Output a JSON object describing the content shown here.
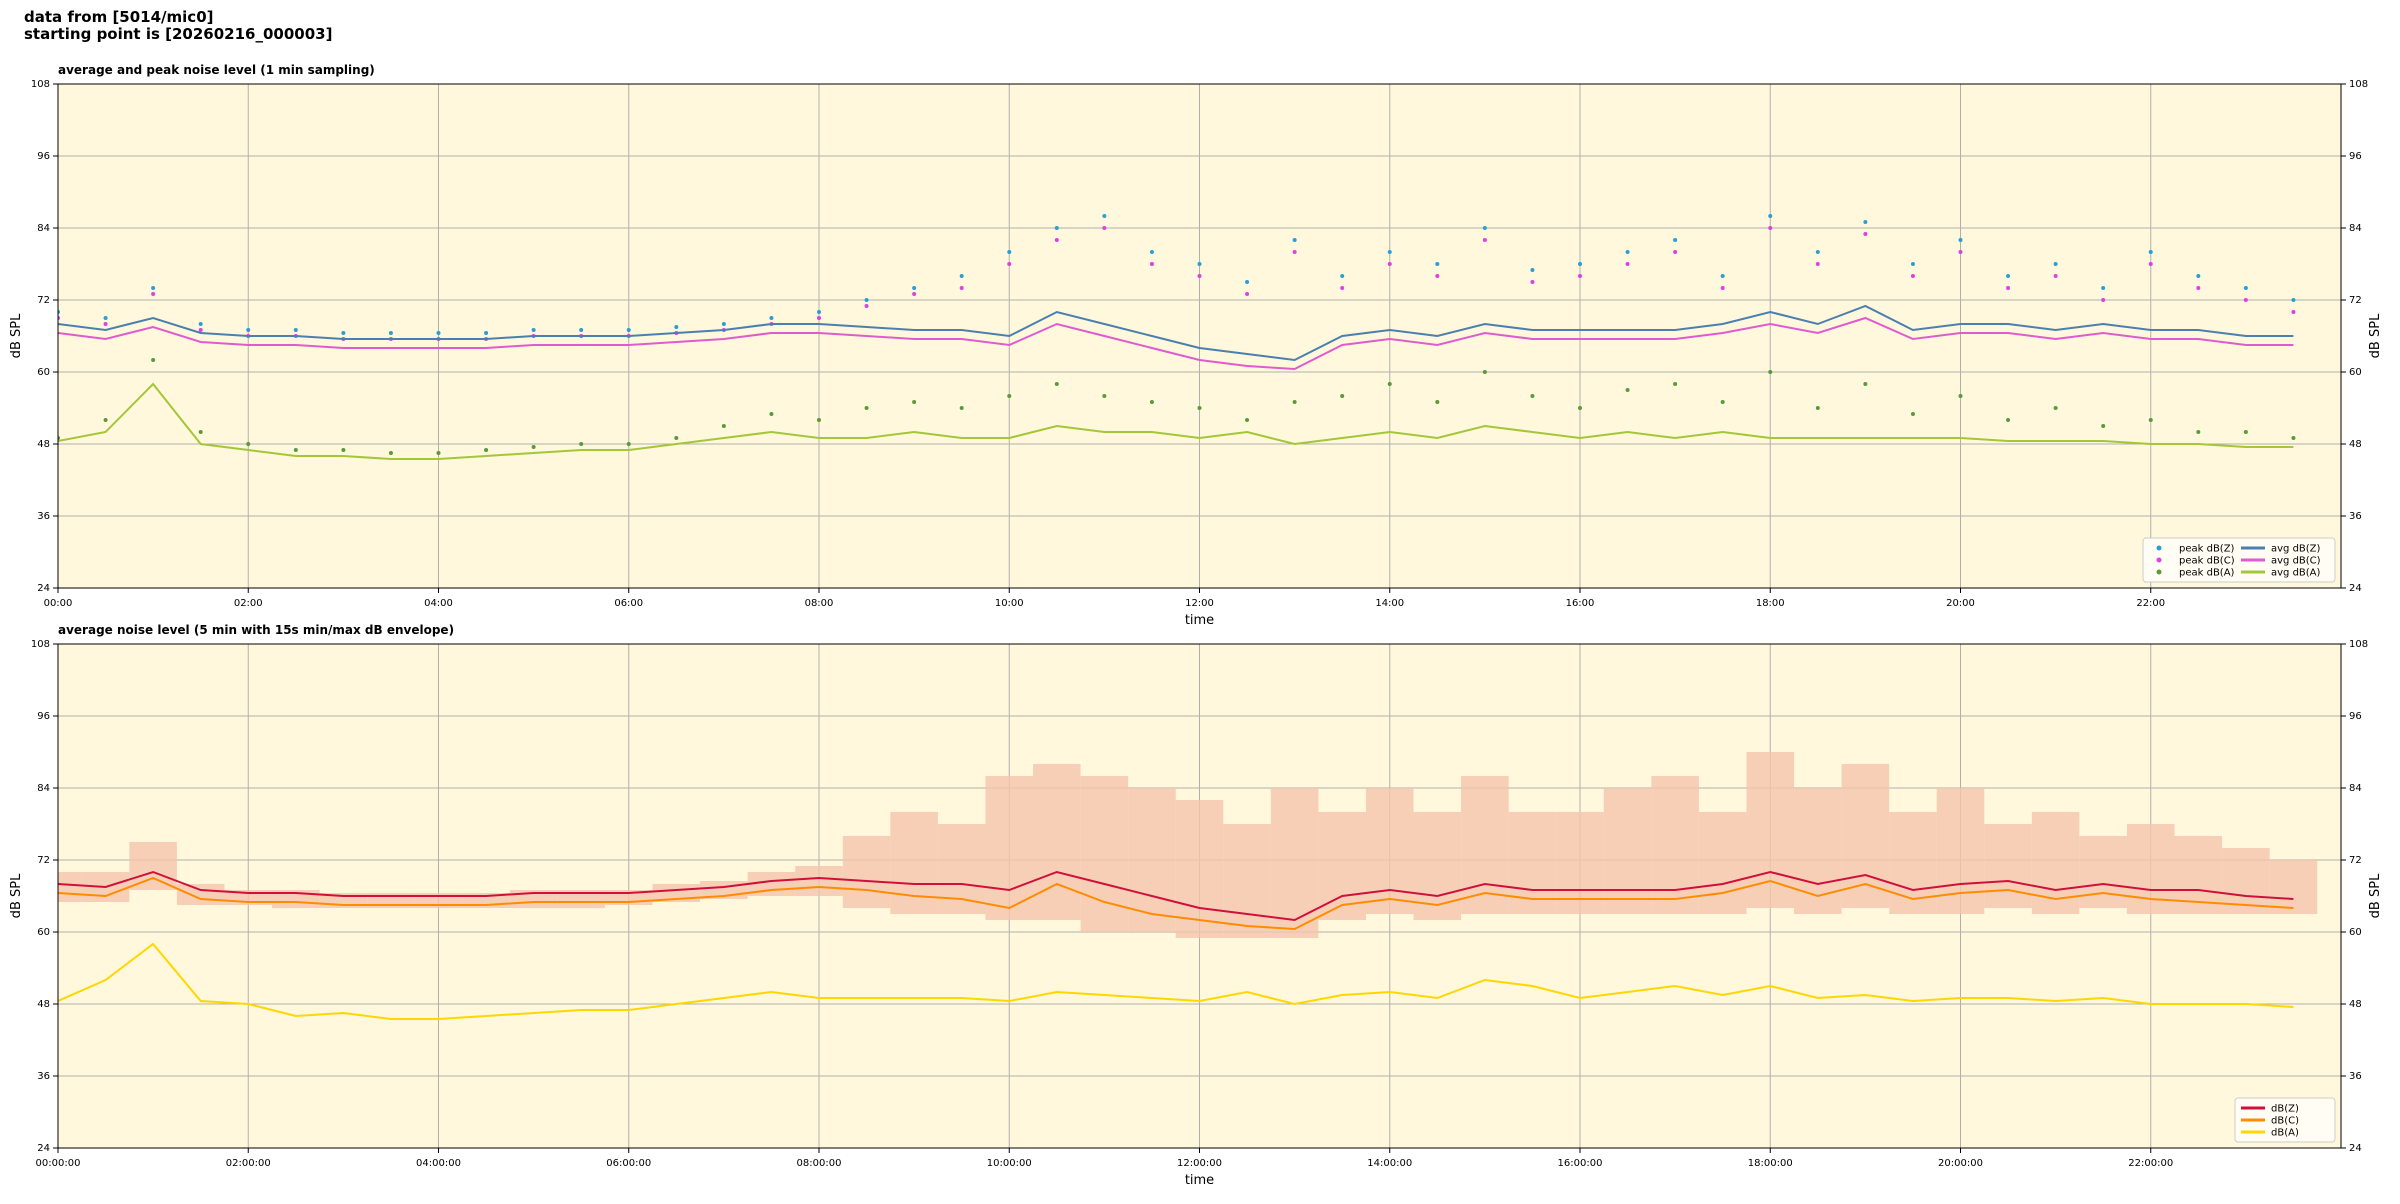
{
  "header": {
    "lines": [
      "data from [5014/mic0]",
      "starting point is [20260216_000003]"
    ]
  },
  "chart_data": [
    {
      "type": "line",
      "title": "average and peak noise level (1 min sampling)",
      "xlabel": "time",
      "ylabel": "dB SPL",
      "xlim": [
        0,
        24
      ],
      "ylim": [
        24,
        108
      ],
      "yticks": [
        24,
        36,
        48,
        60,
        72,
        84,
        96,
        108
      ],
      "xticks": [
        {
          "value": 0,
          "label": "00:00"
        },
        {
          "value": 2,
          "label": "02:00"
        },
        {
          "value": 4,
          "label": "04:00"
        },
        {
          "value": 6,
          "label": "06:00"
        },
        {
          "value": 8,
          "label": "08:00"
        },
        {
          "value": 10,
          "label": "10:00"
        },
        {
          "value": 12,
          "label": "12:00"
        },
        {
          "value": 14,
          "label": "14:00"
        },
        {
          "value": 16,
          "label": "16:00"
        },
        {
          "value": 18,
          "label": "18:00"
        },
        {
          "value": 20,
          "label": "20:00"
        },
        {
          "value": 22,
          "label": "22:00"
        }
      ],
      "grid": true,
      "legend": "lower right",
      "background": "#fff8dc",
      "x": [
        0,
        0.5,
        1,
        1.5,
        2,
        2.5,
        3,
        3.5,
        4,
        4.5,
        5,
        5.5,
        6,
        6.5,
        7,
        7.5,
        8,
        8.5,
        9,
        9.5,
        10,
        10.5,
        11,
        11.5,
        12,
        12.5,
        13,
        13.5,
        14,
        14.5,
        15,
        15.5,
        16,
        16.5,
        17,
        17.5,
        18,
        18.5,
        19,
        19.5,
        20,
        20.5,
        21,
        21.5,
        22,
        22.5,
        23,
        23.5
      ],
      "series": [
        {
          "name": "peak dB(Z)",
          "kind": "scatter",
          "color": "#2a9fd6",
          "values": [
            70,
            69,
            74,
            68,
            67,
            67,
            66.5,
            66.5,
            66.5,
            66.5,
            67,
            67,
            67,
            67.5,
            68,
            69,
            70,
            72,
            74,
            76,
            80,
            84,
            86,
            80,
            78,
            75,
            82,
            76,
            80,
            78,
            84,
            77,
            78,
            80,
            82,
            76,
            86,
            80,
            85,
            78,
            82,
            76,
            78,
            74,
            80,
            76,
            74,
            72
          ]
        },
        {
          "name": "peak dB(C)",
          "kind": "scatter",
          "color": "#e040e0",
          "values": [
            69,
            68,
            73,
            67,
            66,
            66,
            65.5,
            65.5,
            65.5,
            65.5,
            66,
            66,
            66,
            66.5,
            67,
            68,
            69,
            71,
            73,
            74,
            78,
            82,
            84,
            78,
            76,
            73,
            80,
            74,
            78,
            76,
            82,
            75,
            76,
            78,
            80,
            74,
            84,
            78,
            83,
            76,
            80,
            74,
            76,
            72,
            78,
            74,
            72,
            70
          ]
        },
        {
          "name": "peak dB(A)",
          "kind": "scatter",
          "color": "#5a9a3a",
          "values": [
            49,
            52,
            62,
            50,
            48,
            47,
            47,
            46.5,
            46.5,
            47,
            47.5,
            48,
            48,
            49,
            51,
            53,
            52,
            54,
            55,
            54,
            56,
            58,
            56,
            55,
            54,
            52,
            55,
            56,
            58,
            55,
            60,
            56,
            54,
            57,
            58,
            55,
            60,
            54,
            58,
            53,
            56,
            52,
            54,
            51,
            52,
            50,
            50,
            49
          ]
        },
        {
          "name": "avg dB(Z)",
          "kind": "line",
          "color": "#4a7fb0",
          "values": [
            68,
            67,
            69,
            66.5,
            66,
            66,
            65.5,
            65.5,
            65.5,
            65.5,
            66,
            66,
            66,
            66.5,
            67,
            68,
            68,
            67.5,
            67,
            67,
            66,
            70,
            68,
            66,
            64,
            63,
            62,
            66,
            67,
            66,
            68,
            67,
            67,
            67,
            67,
            68,
            70,
            68,
            71,
            67,
            68,
            68,
            67,
            68,
            67,
            67,
            66,
            66
          ]
        },
        {
          "name": "avg dB(C)",
          "kind": "line",
          "color": "#e05ad0",
          "values": [
            66.5,
            65.5,
            67.5,
            65,
            64.5,
            64.5,
            64,
            64,
            64,
            64,
            64.5,
            64.5,
            64.5,
            65,
            65.5,
            66.5,
            66.5,
            66,
            65.5,
            65.5,
            64.5,
            68,
            66,
            64,
            62,
            61,
            60.5,
            64.5,
            65.5,
            64.5,
            66.5,
            65.5,
            65.5,
            65.5,
            65.5,
            66.5,
            68,
            66.5,
            69,
            65.5,
            66.5,
            66.5,
            65.5,
            66.5,
            65.5,
            65.5,
            64.5,
            64.5
          ]
        },
        {
          "name": "avg dB(A)",
          "kind": "line",
          "color": "#a4c639",
          "values": [
            48.5,
            50,
            58,
            48,
            47,
            46,
            46,
            45.5,
            45.5,
            46,
            46.5,
            47,
            47,
            48,
            49,
            50,
            49,
            49,
            50,
            49,
            49,
            51,
            50,
            50,
            49,
            50,
            48,
            49,
            50,
            49,
            51,
            50,
            49,
            50,
            49,
            50,
            49,
            49,
            49,
            49,
            49,
            48.5,
            48.5,
            48.5,
            48,
            48,
            47.5,
            47.5
          ]
        }
      ]
    },
    {
      "type": "line",
      "title": "average noise level (5 min with 15s min/max dB envelope)",
      "xlabel": "time",
      "ylabel": "dB SPL",
      "xlim": [
        0,
        24
      ],
      "ylim": [
        24,
        108
      ],
      "yticks": [
        24,
        36,
        48,
        60,
        72,
        84,
        96,
        108
      ],
      "xticks": [
        {
          "value": 0,
          "label": "00:00:00"
        },
        {
          "value": 2,
          "label": "02:00:00"
        },
        {
          "value": 4,
          "label": "04:00:00"
        },
        {
          "value": 6,
          "label": "06:00:00"
        },
        {
          "value": 8,
          "label": "08:00:00"
        },
        {
          "value": 10,
          "label": "10:00:00"
        },
        {
          "value": 12,
          "label": "12:00:00"
        },
        {
          "value": 14,
          "label": "14:00:00"
        },
        {
          "value": 16,
          "label": "16:00:00"
        },
        {
          "value": 18,
          "label": "18:00:00"
        },
        {
          "value": 20,
          "label": "20:00:00"
        },
        {
          "value": 22,
          "label": "22:00:00"
        }
      ],
      "grid": true,
      "legend": "lower right",
      "background": "#fff8dc",
      "x": [
        0,
        0.5,
        1,
        1.5,
        2,
        2.5,
        3,
        3.5,
        4,
        4.5,
        5,
        5.5,
        6,
        6.5,
        7,
        7.5,
        8,
        8.5,
        9,
        9.5,
        10,
        10.5,
        11,
        11.5,
        12,
        12.5,
        13,
        13.5,
        14,
        14.5,
        15,
        15.5,
        16,
        16.5,
        17,
        17.5,
        18,
        18.5,
        19,
        19.5,
        20,
        20.5,
        21,
        21.5,
        22,
        22.5,
        23,
        23.5
      ],
      "envelope": {
        "color": "#f5c4ae",
        "min": [
          65,
          65,
          67,
          64.5,
          64.5,
          64,
          64,
          64,
          64,
          64,
          64,
          64,
          64.5,
          65,
          65.5,
          66,
          66,
          64,
          63,
          63,
          62,
          62,
          60,
          60,
          59,
          59,
          59,
          62,
          63,
          62,
          63,
          63,
          63,
          63,
          63,
          63,
          64,
          63,
          64,
          63,
          63,
          64,
          63,
          64,
          63,
          63,
          63,
          63
        ],
        "max": [
          70,
          70,
          75,
          68,
          67,
          67,
          66.5,
          66.5,
          66.5,
          66.5,
          67,
          67,
          67,
          68,
          68.5,
          70,
          71,
          76,
          80,
          78,
          86,
          88,
          86,
          84,
          82,
          78,
          84,
          80,
          84,
          80,
          86,
          80,
          80,
          84,
          86,
          80,
          90,
          84,
          88,
          80,
          84,
          78,
          80,
          76,
          78,
          76,
          74,
          72
        ]
      },
      "series": [
        {
          "name": "dB(Z)",
          "kind": "line",
          "color": "#d0103a",
          "values": [
            68,
            67.5,
            70,
            67,
            66.5,
            66.5,
            66,
            66,
            66,
            66,
            66.5,
            66.5,
            66.5,
            67,
            67.5,
            68.5,
            69,
            68.5,
            68,
            68,
            67,
            70,
            68,
            66,
            64,
            63,
            62,
            66,
            67,
            66,
            68,
            67,
            67,
            67,
            67,
            68,
            70,
            68,
            69.5,
            67,
            68,
            68.5,
            67,
            68,
            67,
            67,
            66,
            65.5
          ]
        },
        {
          "name": "dB(C)",
          "kind": "line",
          "color": "#ff8c00",
          "values": [
            66.5,
            66,
            69,
            65.5,
            65,
            65,
            64.5,
            64.5,
            64.5,
            64.5,
            65,
            65,
            65,
            65.5,
            66,
            67,
            67.5,
            67,
            66,
            65.5,
            64,
            68,
            65,
            63,
            62,
            61,
            60.5,
            64.5,
            65.5,
            64.5,
            66.5,
            65.5,
            65.5,
            65.5,
            65.5,
            66.5,
            68.5,
            66,
            68,
            65.5,
            66.5,
            67,
            65.5,
            66.5,
            65.5,
            65,
            64.5,
            64
          ]
        },
        {
          "name": "dB(A)",
          "kind": "line",
          "color": "#ffd700",
          "values": [
            48.5,
            52,
            58,
            48.5,
            48,
            46,
            46.5,
            45.5,
            45.5,
            46,
            46.5,
            47,
            47,
            48,
            49,
            50,
            49,
            49,
            49,
            49,
            48.5,
            50,
            49.5,
            49,
            48.5,
            50,
            48,
            49.5,
            50,
            49,
            52,
            51,
            49,
            50,
            51,
            49.5,
            51,
            49,
            49.5,
            48.5,
            49,
            49,
            48.5,
            49,
            48,
            48,
            48,
            47.5
          ]
        }
      ]
    }
  ]
}
